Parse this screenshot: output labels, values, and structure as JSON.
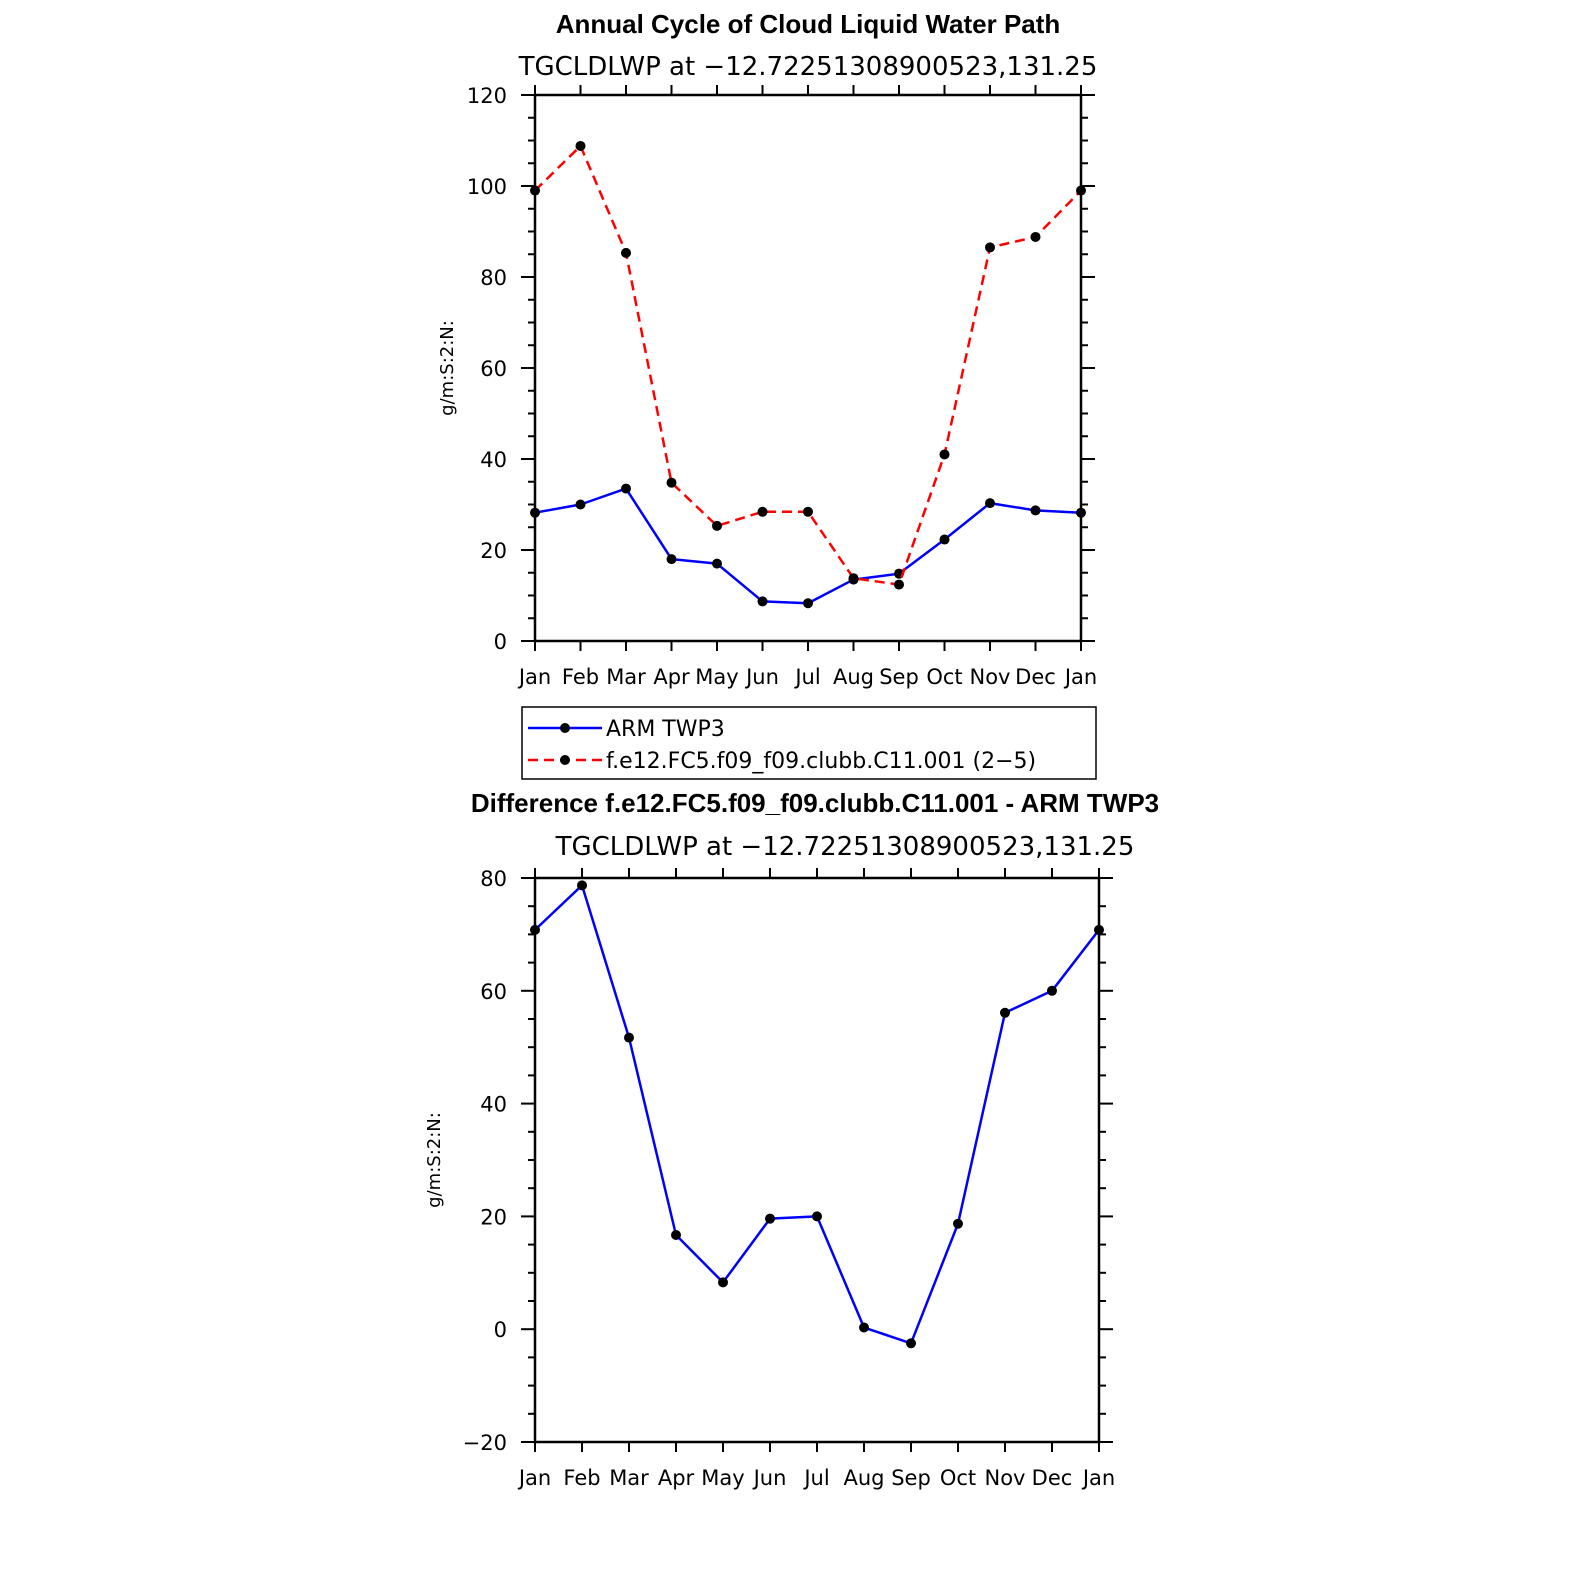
{
  "chart_data": [
    {
      "type": "line",
      "title": "Annual Cycle of Cloud Liquid Water Path",
      "subtitle": "TGCLDLWP  at  −12.72251308900523,131.25",
      "ylabel": "g/m:S:2:N:",
      "xlabel": "",
      "categories": [
        "Jan",
        "Feb",
        "Mar",
        "Apr",
        "May",
        "Jun",
        "Jul",
        "Aug",
        "Sep",
        "Oct",
        "Nov",
        "Dec",
        "Jan"
      ],
      "ylim": [
        0,
        120
      ],
      "yticks": [
        0,
        20,
        40,
        60,
        80,
        100,
        120
      ],
      "ytick_labels": [
        "0",
        "20",
        "40",
        "60",
        "80",
        "100",
        "120"
      ],
      "series": [
        {
          "name": "ARM  TWP3",
          "color": "#0000ff",
          "dash": "solid",
          "values": [
            28.2,
            30.0,
            33.5,
            18.0,
            17.0,
            8.7,
            8.3,
            13.5,
            14.8,
            22.3,
            30.3,
            28.7,
            28.2
          ]
        },
        {
          "name": "f.e12.FC5.f09_f09.clubb.C11.001 (2−5)",
          "color": "#ff0000",
          "dash": "dashed",
          "values": [
            99.0,
            108.8,
            85.3,
            34.8,
            25.3,
            28.4,
            28.4,
            13.8,
            12.4,
            41.0,
            86.5,
            88.8,
            99.0
          ]
        }
      ],
      "legend": "below"
    },
    {
      "type": "line",
      "title": "Difference f.e12.FC5.f09_f09.clubb.C11.001 - ARM TWP3",
      "subtitle": "TGCLDLWP  at  −12.72251308900523,131.25",
      "ylabel": "g/m:S:2:N:",
      "xlabel": "",
      "categories": [
        "Jan",
        "Feb",
        "Mar",
        "Apr",
        "May",
        "Jun",
        "Jul",
        "Aug",
        "Sep",
        "Oct",
        "Nov",
        "Dec",
        "Jan"
      ],
      "ylim": [
        -20,
        80
      ],
      "yticks": [
        -20,
        0,
        20,
        40,
        60,
        80
      ],
      "ytick_labels": [
        "−20",
        "0",
        "20",
        "40",
        "60",
        "80"
      ],
      "series": [
        {
          "name": "Difference",
          "color": "#0000ff",
          "dash": "solid",
          "values": [
            70.8,
            78.7,
            51.7,
            16.7,
            8.3,
            19.6,
            20.0,
            0.3,
            -2.5,
            18.7,
            56.1,
            60.0,
            70.8
          ]
        }
      ]
    }
  ]
}
